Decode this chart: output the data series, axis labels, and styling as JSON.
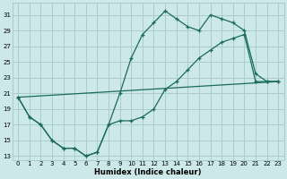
{
  "xlabel": "Humidex (Indice chaleur)",
  "bg_color": "#cce8e8",
  "line_color": "#1a6b5a",
  "grid_color": "#aacccc",
  "xlim": [
    -0.5,
    23.5
  ],
  "ylim": [
    12.5,
    32.5
  ],
  "yticks": [
    13,
    15,
    17,
    19,
    21,
    23,
    25,
    27,
    29,
    31
  ],
  "xticks": [
    0,
    1,
    2,
    3,
    4,
    5,
    6,
    7,
    8,
    9,
    10,
    11,
    12,
    13,
    14,
    15,
    16,
    17,
    18,
    19,
    20,
    21,
    22,
    23
  ],
  "line1_x": [
    0,
    1,
    2,
    3,
    4,
    5,
    6,
    7,
    8,
    9,
    10,
    11,
    12,
    13,
    14,
    15,
    16,
    17,
    18,
    19,
    20,
    21,
    22,
    23
  ],
  "line1_y": [
    20.5,
    18.0,
    17.0,
    15.0,
    14.0,
    14.0,
    13.0,
    13.5,
    17.0,
    21.0,
    25.5,
    28.5,
    30.0,
    31.5,
    30.5,
    29.5,
    29.0,
    31.0,
    30.5,
    30.0,
    29.0,
    23.5,
    22.5,
    22.5
  ],
  "line2_x": [
    0,
    1,
    2,
    3,
    4,
    5,
    6,
    7,
    8,
    9,
    10,
    11,
    12,
    13,
    14,
    15,
    16,
    17,
    18,
    19,
    20,
    21,
    22,
    23
  ],
  "line2_y": [
    20.5,
    18.0,
    17.0,
    15.0,
    14.0,
    14.0,
    13.0,
    13.5,
    17.0,
    17.5,
    17.5,
    18.0,
    19.0,
    21.5,
    22.5,
    24.0,
    25.5,
    26.5,
    27.5,
    28.0,
    28.5,
    22.5,
    22.5,
    22.5
  ],
  "line3_x": [
    0,
    23
  ],
  "line3_y": [
    20.5,
    22.5
  ]
}
